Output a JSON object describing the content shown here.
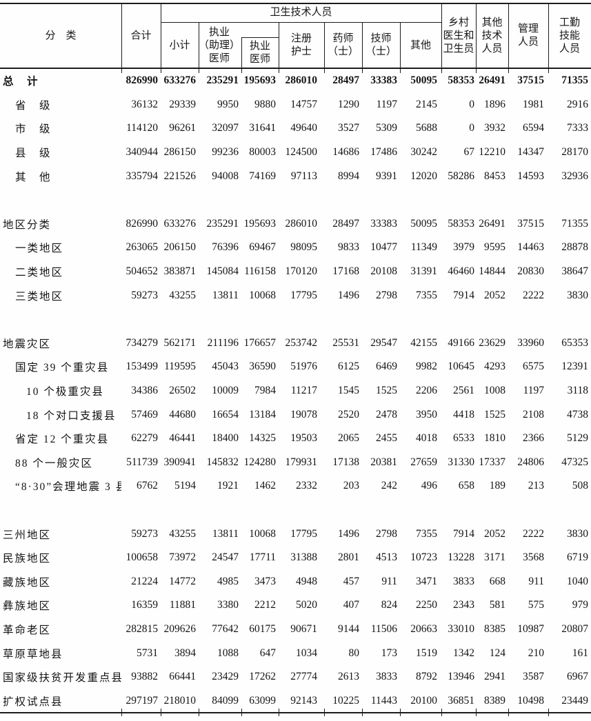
{
  "header": {
    "category": "分　类",
    "total": "合计",
    "health_group": "卫生技术人员",
    "subtotal": "小计",
    "licensed_assistant_physician": "执业\n（助理）\n医师",
    "licensed_physician": "执业\n医师",
    "registered_nurse": "注册\n护士",
    "pharmacist": "药师\n（士）",
    "lab_technician": "技师\n（士）",
    "other": "其他",
    "village_doctor": "乡村\n医生和\n卫生员",
    "other_technical": "其他\n技术\n人员",
    "management": "管理\n人员",
    "logistics_skill": "工勤\n技能\n人员"
  },
  "table": {
    "columns": [
      "分类",
      "合计",
      "小计",
      "执业（助理）医师",
      "执业医师",
      "注册护士",
      "药师（士）",
      "技师（士）",
      "其他",
      "乡村医生和卫生员",
      "其他技术人员",
      "管理人员",
      "工勤技能人员"
    ],
    "rows": [
      {
        "label": "总　计",
        "indent": 0,
        "bold": true,
        "values": [
          "826990",
          "633276",
          "235291",
          "195693",
          "286010",
          "28497",
          "33383",
          "50095",
          "58353",
          "26491",
          "37515",
          "71355"
        ]
      },
      {
        "label": "省　级",
        "indent": 1,
        "values": [
          "36132",
          "29339",
          "9950",
          "9880",
          "14757",
          "1290",
          "1197",
          "2145",
          "0",
          "1896",
          "1981",
          "2916"
        ]
      },
      {
        "label": "市　级",
        "indent": 1,
        "values": [
          "114120",
          "96261",
          "32097",
          "31641",
          "49640",
          "3527",
          "5309",
          "5688",
          "0",
          "3932",
          "6594",
          "7333"
        ]
      },
      {
        "label": "县　级",
        "indent": 1,
        "values": [
          "340944",
          "286150",
          "99236",
          "80003",
          "124500",
          "14686",
          "17486",
          "30242",
          "67",
          "12210",
          "14347",
          "28170"
        ]
      },
      {
        "label": "其　他",
        "indent": 1,
        "values": [
          "335794",
          "221526",
          "94008",
          "74169",
          "97113",
          "8994",
          "9391",
          "12020",
          "58286",
          "8453",
          "14593",
          "32936"
        ]
      },
      {
        "spacer": true
      },
      {
        "label": "地区分类",
        "indent": 0,
        "values": [
          "826990",
          "633276",
          "235291",
          "195693",
          "286010",
          "28497",
          "33383",
          "50095",
          "58353",
          "26491",
          "37515",
          "71355"
        ]
      },
      {
        "label": "一类地区",
        "indent": 1,
        "values": [
          "263065",
          "206150",
          "76396",
          "69467",
          "98095",
          "9833",
          "10477",
          "11349",
          "3979",
          "9595",
          "14463",
          "28878"
        ]
      },
      {
        "label": "二类地区",
        "indent": 1,
        "values": [
          "504652",
          "383871",
          "145084",
          "116158",
          "170120",
          "17168",
          "20108",
          "31391",
          "46460",
          "14844",
          "20830",
          "38647"
        ]
      },
      {
        "label": "三类地区",
        "indent": 1,
        "values": [
          "59273",
          "43255",
          "13811",
          "10068",
          "17795",
          "1496",
          "2798",
          "7355",
          "7914",
          "2052",
          "2222",
          "3830"
        ]
      },
      {
        "spacer": true
      },
      {
        "label": "地震灾区",
        "indent": 0,
        "values": [
          "734279",
          "562171",
          "211196",
          "176657",
          "253742",
          "25531",
          "29547",
          "42155",
          "49166",
          "23629",
          "33960",
          "65353"
        ]
      },
      {
        "label": "国定 39 个重灾县",
        "indent": 1,
        "values": [
          "153499",
          "119595",
          "45043",
          "36590",
          "51976",
          "6125",
          "6469",
          "9982",
          "10645",
          "4293",
          "6575",
          "12391"
        ]
      },
      {
        "label": "10 个极重灾县",
        "indent": 2,
        "values": [
          "34386",
          "26502",
          "10009",
          "7984",
          "11217",
          "1545",
          "1525",
          "2206",
          "2561",
          "1008",
          "1197",
          "3118"
        ]
      },
      {
        "label": "18 个对口支援县",
        "indent": 2,
        "values": [
          "57469",
          "44680",
          "16654",
          "13184",
          "19078",
          "2520",
          "2478",
          "3950",
          "4418",
          "1525",
          "2108",
          "4738"
        ]
      },
      {
        "label": "省定 12 个重灾县",
        "indent": 1,
        "values": [
          "62279",
          "46441",
          "18400",
          "14325",
          "19503",
          "2065",
          "2455",
          "4018",
          "6533",
          "1810",
          "2366",
          "5129"
        ]
      },
      {
        "label": "88 个一般灾区",
        "indent": 1,
        "values": [
          "511739",
          "390941",
          "145832",
          "124280",
          "179931",
          "17138",
          "20381",
          "27659",
          "31330",
          "17337",
          "24806",
          "47325"
        ]
      },
      {
        "label": "“8·30”会理地震 3 县",
        "indent": 1,
        "values": [
          "6762",
          "5194",
          "1921",
          "1462",
          "2332",
          "203",
          "242",
          "496",
          "658",
          "189",
          "213",
          "508"
        ]
      },
      {
        "spacer": true
      },
      {
        "label": "三州地区",
        "indent": 0,
        "values": [
          "59273",
          "43255",
          "13811",
          "10068",
          "17795",
          "1496",
          "2798",
          "7355",
          "7914",
          "2052",
          "2222",
          "3830"
        ]
      },
      {
        "label": "民族地区",
        "indent": 0,
        "values": [
          "100658",
          "73972",
          "24547",
          "17711",
          "31388",
          "2801",
          "4513",
          "10723",
          "13228",
          "3171",
          "3568",
          "6719"
        ]
      },
      {
        "label": "藏族地区",
        "indent": 0,
        "values": [
          "21224",
          "14772",
          "4985",
          "3473",
          "4948",
          "457",
          "911",
          "3471",
          "3833",
          "668",
          "911",
          "1040"
        ]
      },
      {
        "label": "彝族地区",
        "indent": 0,
        "values": [
          "16359",
          "11881",
          "3380",
          "2212",
          "5020",
          "407",
          "824",
          "2250",
          "2343",
          "581",
          "575",
          "979"
        ]
      },
      {
        "label": "革命老区",
        "indent": 0,
        "values": [
          "282815",
          "209626",
          "77642",
          "60175",
          "90671",
          "9144",
          "11506",
          "20663",
          "33010",
          "8385",
          "10987",
          "20807"
        ]
      },
      {
        "label": "草原草地县",
        "indent": 0,
        "values": [
          "5731",
          "3894",
          "1088",
          "647",
          "1034",
          "80",
          "173",
          "1519",
          "1342",
          "124",
          "210",
          "161"
        ]
      },
      {
        "label": "国家级扶贫开发重点县",
        "indent": 0,
        "values": [
          "93882",
          "66441",
          "23429",
          "17262",
          "27774",
          "2613",
          "3833",
          "8792",
          "13946",
          "2941",
          "3587",
          "6967"
        ]
      },
      {
        "label": "扩权试点县",
        "indent": 0,
        "values": [
          "297197",
          "218010",
          "84099",
          "63099",
          "92143",
          "10225",
          "11443",
          "20100",
          "36851",
          "8389",
          "10498",
          "23449"
        ]
      }
    ]
  }
}
